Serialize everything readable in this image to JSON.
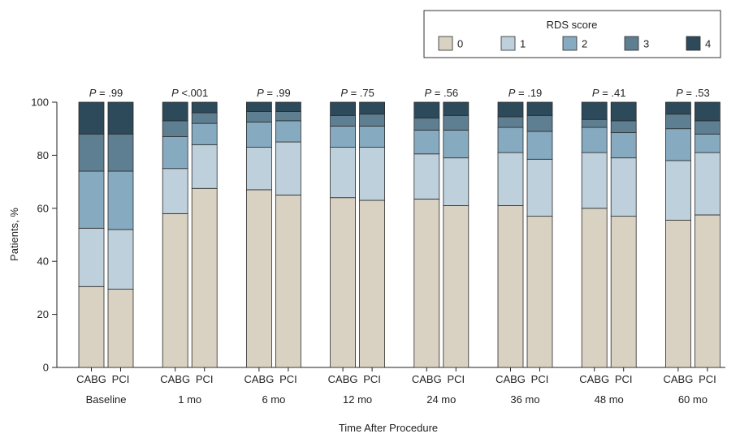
{
  "chart_data": {
    "type": "bar",
    "stacked": true,
    "xlabel": "Time After Procedure",
    "ylabel": "Patients, %",
    "ylim": [
      0,
      100
    ],
    "yticks": [
      0,
      20,
      40,
      60,
      80,
      100
    ],
    "grid": false,
    "legend": {
      "title": "RDS score",
      "placement": "top-right",
      "entries": [
        "0",
        "1",
        "2",
        "3",
        "4"
      ]
    },
    "colors": [
      "#d9d2c2",
      "#bdd0dc",
      "#86aac0",
      "#5e7f91",
      "#2c4a5a"
    ],
    "bar_labels": [
      "CABG",
      "PCI"
    ],
    "groups": [
      {
        "label": "Baseline",
        "p_prefix": "P",
        "p_text": " = .99",
        "bars": [
          {
            "label": "CABG",
            "cum": [
              30.5,
              52.5,
              74,
              88,
              100
            ]
          },
          {
            "label": "PCI",
            "cum": [
              29.5,
              52,
              74,
              88,
              100
            ]
          }
        ]
      },
      {
        "label": "1 mo",
        "p_prefix": "P",
        "p_text": " <.001",
        "bars": [
          {
            "label": "CABG",
            "cum": [
              58,
              75,
              87,
              93,
              100
            ]
          },
          {
            "label": "PCI",
            "cum": [
              67.5,
              84,
              92,
              96,
              100
            ]
          }
        ]
      },
      {
        "label": "6 mo",
        "p_prefix": "P",
        "p_text": " = .99",
        "bars": [
          {
            "label": "CABG",
            "cum": [
              67,
              83,
              92.5,
              96.5,
              100
            ]
          },
          {
            "label": "PCI",
            "cum": [
              65,
              85,
              93,
              96.5,
              100
            ]
          }
        ]
      },
      {
        "label": "12 mo",
        "p_prefix": "P",
        "p_text": " = .75",
        "bars": [
          {
            "label": "CABG",
            "cum": [
              64,
              83,
              91,
              95,
              100
            ]
          },
          {
            "label": "PCI",
            "cum": [
              63,
              83,
              91,
              95.5,
              100
            ]
          }
        ]
      },
      {
        "label": "24 mo",
        "p_prefix": "P",
        "p_text": " = .56",
        "bars": [
          {
            "label": "CABG",
            "cum": [
              63.5,
              80.5,
              89.5,
              94,
              100
            ]
          },
          {
            "label": "PCI",
            "cum": [
              61,
              79,
              89.5,
              95,
              100
            ]
          }
        ]
      },
      {
        "label": "36 mo",
        "p_prefix": "P",
        "p_text": " = .19",
        "bars": [
          {
            "label": "CABG",
            "cum": [
              61,
              81,
              90.5,
              94.5,
              100
            ]
          },
          {
            "label": "PCI",
            "cum": [
              57,
              78.5,
              89,
              95,
              100
            ]
          }
        ]
      },
      {
        "label": "48 mo",
        "p_prefix": "P",
        "p_text": " = .41",
        "bars": [
          {
            "label": "CABG",
            "cum": [
              60,
              81,
              90.5,
              93.5,
              100
            ]
          },
          {
            "label": "PCI",
            "cum": [
              57,
              79,
              88.5,
              93,
              100
            ]
          }
        ]
      },
      {
        "label": "60 mo",
        "p_prefix": "P",
        "p_text": " = .53",
        "bars": [
          {
            "label": "CABG",
            "cum": [
              55.5,
              78,
              90,
              95.5,
              100
            ]
          },
          {
            "label": "PCI",
            "cum": [
              57.5,
              81,
              88,
              93,
              100
            ]
          }
        ]
      }
    ]
  }
}
